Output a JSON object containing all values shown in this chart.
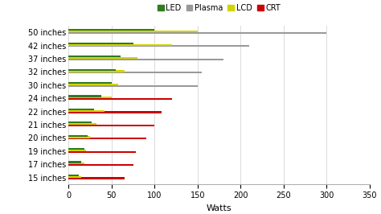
{
  "categories": [
    "50 inches",
    "42 inches",
    "37 inches",
    "32 inches",
    "30 inches",
    "24 inches",
    "22 inches",
    "21 inches",
    "20 inches",
    "19 inches",
    "17 inches",
    "15 inches"
  ],
  "LED": [
    100,
    75,
    60,
    55,
    50,
    38,
    30,
    27,
    22,
    18,
    15,
    12
  ],
  "Plasma": [
    300,
    210,
    180,
    155,
    150,
    null,
    null,
    null,
    null,
    null,
    null,
    null
  ],
  "LCD": [
    150,
    120,
    80,
    65,
    58,
    50,
    42,
    32,
    25,
    20,
    18,
    15
  ],
  "CRT": [
    null,
    null,
    null,
    null,
    null,
    120,
    108,
    100,
    90,
    78,
    75,
    65
  ],
  "colors": {
    "LED": "#2e7d1e",
    "Plasma": "#999999",
    "LCD": "#d4d400",
    "CRT": "#cc0000"
  },
  "xlim": [
    0,
    350
  ],
  "xticks": [
    0,
    50,
    100,
    150,
    200,
    250,
    300,
    350
  ],
  "xlabel": "Watts",
  "bar_height": 0.55,
  "background_color": "#ffffff"
}
